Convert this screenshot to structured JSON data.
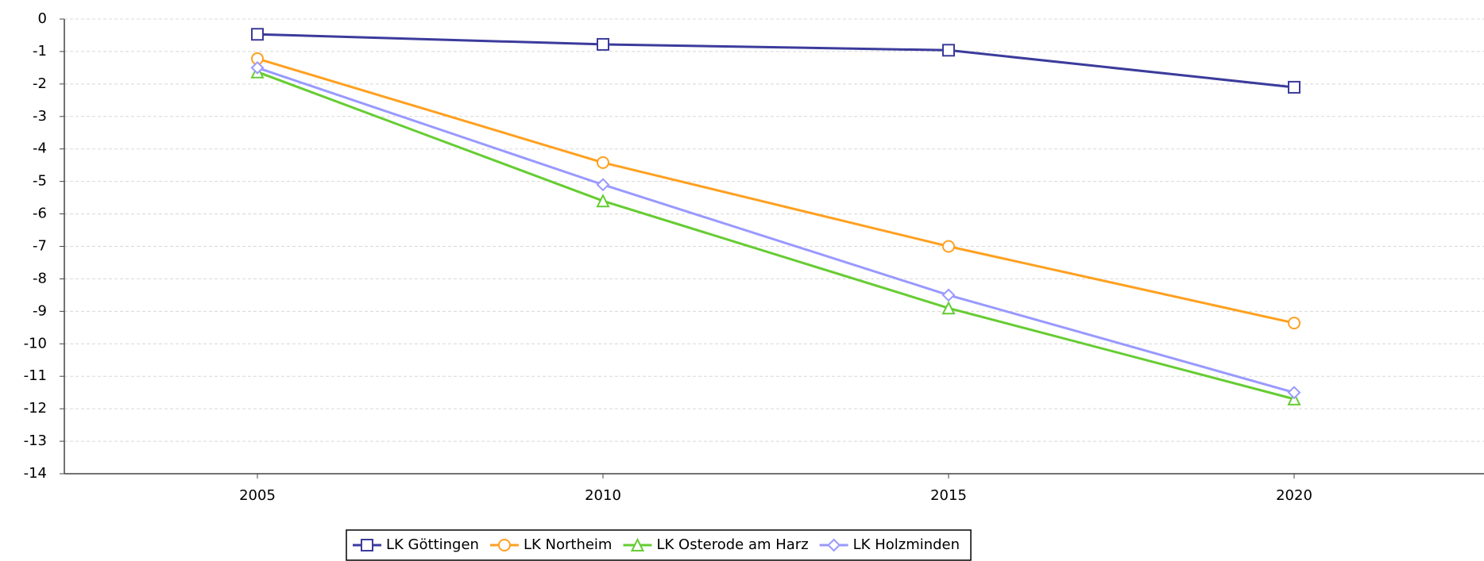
{
  "chart_data": {
    "type": "line",
    "categories": [
      "2005",
      "2010",
      "2015",
      "2020"
    ],
    "series": [
      {
        "name": "LK Göttingen",
        "color": "#3b3b9c",
        "marker": "square",
        "values": [
          -0.47,
          -0.78,
          -0.96,
          -2.1
        ]
      },
      {
        "name": "LK Northeim",
        "color": "#ffa020",
        "marker": "circle",
        "values": [
          -1.22,
          -4.42,
          -7.0,
          -9.36
        ]
      },
      {
        "name": "LK Osterode am Harz",
        "color": "#66cc33",
        "marker": "triangle",
        "values": [
          -1.63,
          -5.6,
          -8.9,
          -11.7
        ]
      },
      {
        "name": "LK Holzminden",
        "color": "#9999ff",
        "marker": "diamond",
        "values": [
          -1.5,
          -5.1,
          -8.5,
          -11.5
        ]
      }
    ],
    "ylim": [
      -14,
      0
    ],
    "yticks": [
      0,
      -1,
      -2,
      -3,
      -4,
      -5,
      -6,
      -7,
      -8,
      -9,
      -10,
      -11,
      -12,
      -13,
      -14
    ],
    "grid": true,
    "legend": "bottom"
  }
}
